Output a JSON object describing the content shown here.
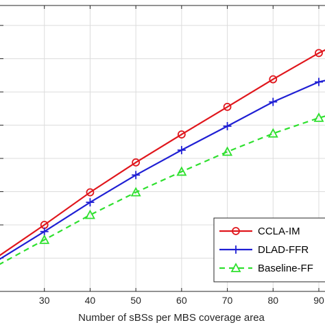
{
  "chart_data": {
    "type": "line",
    "title": "",
    "xlabel": "Number of sBSs per MBS coverage area",
    "ylabel": "",
    "xlim": [
      20,
      93
    ],
    "ylim": [
      0,
      8.6
    ],
    "x_ticks": [
      30,
      40,
      50,
      60,
      70,
      80,
      90
    ],
    "x_tick_labels": [
      "30",
      "40",
      "50",
      "60",
      "70",
      "80",
      "90"
    ],
    "y_ticks": [
      1,
      2,
      3,
      4,
      5,
      6,
      7,
      8
    ],
    "grid": true,
    "legend_position": "bottom-right",
    "series": [
      {
        "name": "CCLA-IM",
        "color": "#e0161c",
        "line_style": "solid",
        "marker": "circle",
        "x": [
          20,
          30,
          40,
          50,
          60,
          70,
          80,
          90,
          95
        ],
        "y": [
          1.06,
          2.0,
          2.98,
          3.88,
          4.72,
          5.55,
          6.38,
          7.17,
          7.5
        ]
      },
      {
        "name": "DLAD-FFR",
        "color": "#1f1fd4",
        "line_style": "solid",
        "marker": "plus",
        "x": [
          20,
          30,
          40,
          50,
          60,
          70,
          80,
          90,
          95
        ],
        "y": [
          0.95,
          1.8,
          2.68,
          3.5,
          4.25,
          4.97,
          5.7,
          6.3,
          6.45
        ]
      },
      {
        "name": "Baseline-FF",
        "color": "#2ee02e",
        "line_style": "dashed",
        "marker": "triangle",
        "x": [
          20,
          30,
          40,
          50,
          60,
          70,
          80,
          90,
          95
        ],
        "y": [
          0.8,
          1.55,
          2.3,
          2.98,
          3.6,
          4.2,
          4.75,
          5.22,
          5.4
        ]
      }
    ]
  }
}
